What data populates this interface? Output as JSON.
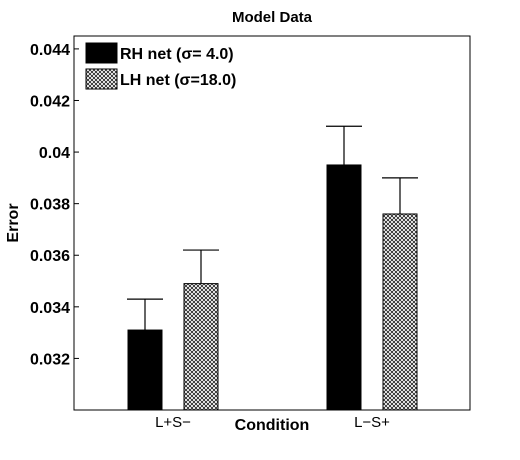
{
  "chart_data": {
    "type": "bar",
    "title": "Model Data",
    "xlabel": "Condition",
    "ylabel": "Error",
    "categories": [
      "L+S−",
      "L−S+"
    ],
    "ylim": [
      0.03,
      0.0445
    ],
    "yticks": [
      "0.032",
      "0.034",
      "0.036",
      "0.038",
      "0.04",
      "0.042",
      "0.044"
    ],
    "legend_position": "top-left",
    "grid": false,
    "series": [
      {
        "name": "RH net (σ= 4.0)",
        "fill": "solid-black",
        "color": "#000000",
        "values": [
          0.0331,
          0.0395
        ],
        "errors": [
          0.0012,
          0.0015
        ]
      },
      {
        "name": "LH net (σ=18.0)",
        "fill": "crosshatch",
        "color": "#000000",
        "values": [
          0.0349,
          0.0376
        ],
        "errors": [
          0.0013,
          0.0014
        ]
      }
    ]
  }
}
